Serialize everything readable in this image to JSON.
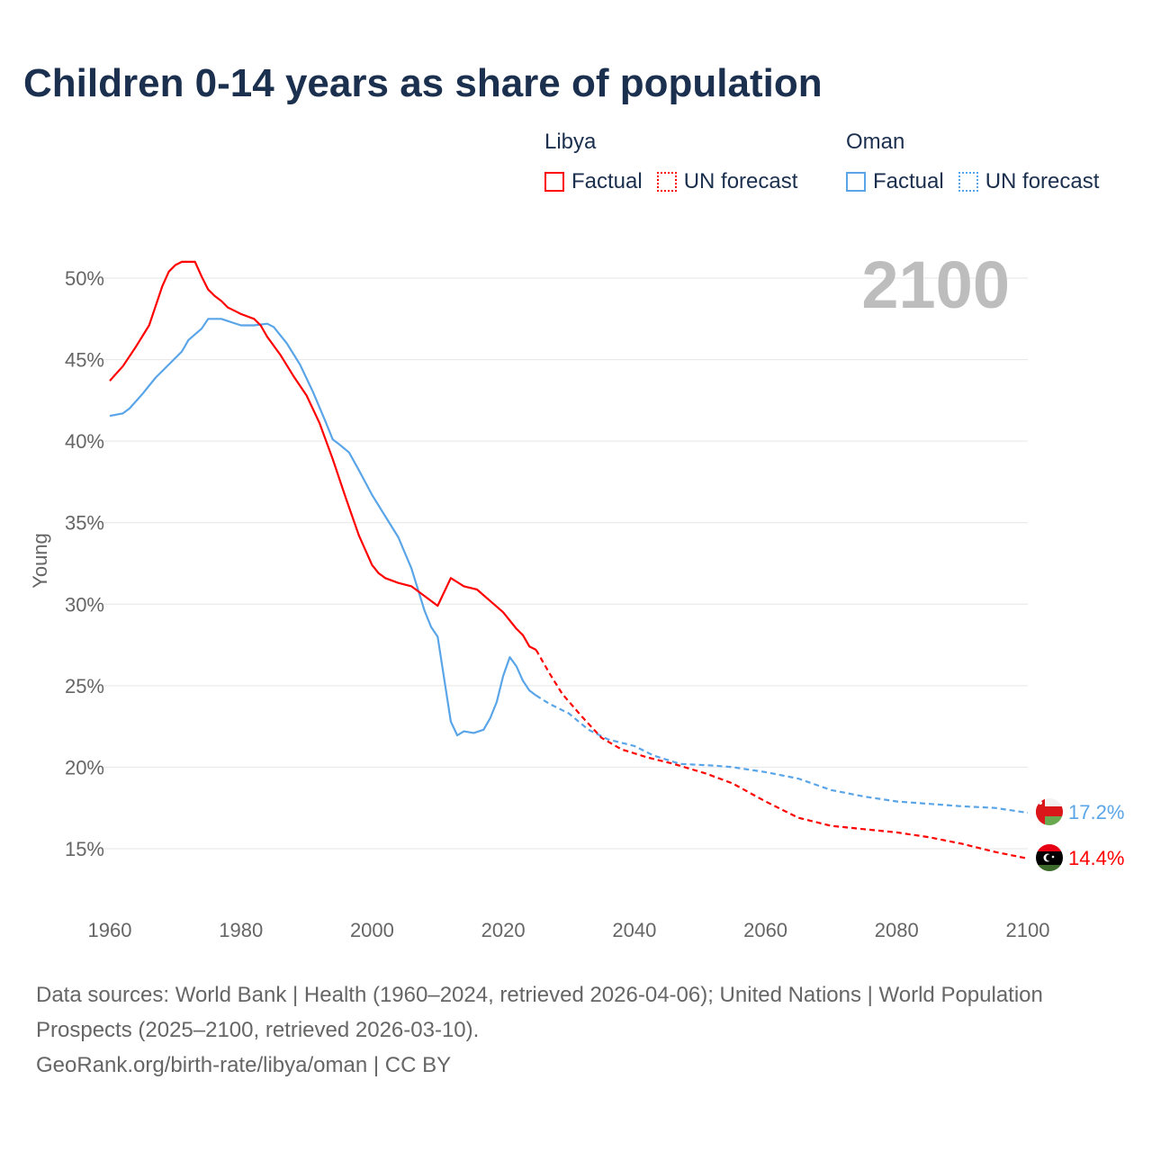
{
  "chart_data": {
    "type": "line",
    "title": "Children 0-14 years as share of population",
    "xlabel": "",
    "ylabel": "Young",
    "xlim": [
      1960,
      2100
    ],
    "ylim": [
      12.5,
      52
    ],
    "x_ticks": [
      "1960",
      "1980",
      "2000",
      "2020",
      "2040",
      "2060",
      "2080",
      "2100"
    ],
    "x_tick_values": [
      1960,
      1980,
      2000,
      2020,
      2040,
      2060,
      2080,
      2100
    ],
    "y_ticks": [
      "15%",
      "20%",
      "25%",
      "30%",
      "35%",
      "40%",
      "45%",
      "50%"
    ],
    "y_tick_values": [
      15,
      20,
      25,
      30,
      35,
      40,
      45,
      50
    ],
    "grid": true,
    "year_label": "2100",
    "legend": {
      "placement": "top-right",
      "groups": [
        {
          "country": "Libya",
          "factual": "Factual",
          "forecast": "UN forecast",
          "color": "#ff0000"
        },
        {
          "country": "Oman",
          "factual": "Factual",
          "forecast": "UN forecast",
          "color": "#5aa5e8"
        }
      ]
    },
    "series": [
      {
        "name": "Libya",
        "color": "#ff0000",
        "end_label": "14.4%",
        "flag": "libya-flag",
        "factual": [
          [
            1960,
            43.7
          ],
          [
            1962,
            44.6
          ],
          [
            1964,
            45.8
          ],
          [
            1966,
            47.1
          ],
          [
            1967,
            48.3
          ],
          [
            1968,
            49.5
          ],
          [
            1969,
            50.4
          ],
          [
            1970,
            50.8
          ],
          [
            1971,
            51.0
          ],
          [
            1973,
            51.0
          ],
          [
            1974,
            50.1
          ],
          [
            1975,
            49.3
          ],
          [
            1976,
            48.9
          ],
          [
            1977,
            48.6
          ],
          [
            1978,
            48.2
          ],
          [
            1979,
            48.0
          ],
          [
            1980,
            47.8
          ],
          [
            1982,
            47.5
          ],
          [
            1983,
            47.1
          ],
          [
            1984,
            46.4
          ],
          [
            1986,
            45.3
          ],
          [
            1988,
            44.0
          ],
          [
            1990,
            42.8
          ],
          [
            1992,
            41.1
          ],
          [
            1994,
            38.9
          ],
          [
            1996,
            36.5
          ],
          [
            1998,
            34.2
          ],
          [
            2000,
            32.4
          ],
          [
            2001,
            31.9
          ],
          [
            2002,
            31.6
          ],
          [
            2004,
            31.3
          ],
          [
            2006,
            31.1
          ],
          [
            2008,
            30.5
          ],
          [
            2010,
            29.9
          ],
          [
            2012,
            31.6
          ],
          [
            2014,
            31.1
          ],
          [
            2016,
            30.9
          ],
          [
            2018,
            30.2
          ],
          [
            2020,
            29.5
          ],
          [
            2022,
            28.5
          ],
          [
            2023,
            28.1
          ],
          [
            2024,
            27.4
          ],
          [
            2025,
            27.2
          ]
        ],
        "forecast": [
          [
            2025,
            27.2
          ],
          [
            2027,
            25.8
          ],
          [
            2029,
            24.5
          ],
          [
            2032,
            23.1
          ],
          [
            2035,
            21.8
          ],
          [
            2038,
            21.1
          ],
          [
            2042,
            20.6
          ],
          [
            2046,
            20.2
          ],
          [
            2051,
            19.6
          ],
          [
            2055,
            19.0
          ],
          [
            2060,
            17.9
          ],
          [
            2065,
            16.9
          ],
          [
            2070,
            16.4
          ],
          [
            2075,
            16.2
          ],
          [
            2080,
            16.0
          ],
          [
            2085,
            15.7
          ],
          [
            2090,
            15.3
          ],
          [
            2095,
            14.8
          ],
          [
            2100,
            14.4
          ]
        ]
      },
      {
        "name": "Oman",
        "color": "#5aa5e8",
        "end_label": "17.2%",
        "flag": "oman-flag",
        "factual": [
          [
            1960,
            41.55
          ],
          [
            1962,
            41.7
          ],
          [
            1963,
            42.0
          ],
          [
            1965,
            42.9
          ],
          [
            1967,
            43.9
          ],
          [
            1969,
            44.7
          ],
          [
            1971,
            45.5
          ],
          [
            1972,
            46.2
          ],
          [
            1974,
            46.9
          ],
          [
            1975,
            47.5
          ],
          [
            1977,
            47.5
          ],
          [
            1980,
            47.1
          ],
          [
            1982,
            47.1
          ],
          [
            1984,
            47.2
          ],
          [
            1985,
            47.0
          ],
          [
            1987,
            46.0
          ],
          [
            1989,
            44.7
          ],
          [
            1991,
            43.0
          ],
          [
            1993,
            41.1
          ],
          [
            1994,
            40.1
          ],
          [
            1995,
            39.8
          ],
          [
            1996.5,
            39.3
          ],
          [
            1998,
            38.2
          ],
          [
            2000,
            36.7
          ],
          [
            2002,
            35.4
          ],
          [
            2004,
            34.1
          ],
          [
            2006,
            32.2
          ],
          [
            2008,
            29.6
          ],
          [
            2009,
            28.6
          ],
          [
            2010,
            28.0
          ],
          [
            2012,
            22.8
          ],
          [
            2013,
            21.95
          ],
          [
            2014,
            22.2
          ],
          [
            2015.5,
            22.1
          ],
          [
            2017,
            22.3
          ],
          [
            2018,
            23.0
          ],
          [
            2019,
            24.0
          ],
          [
            2020,
            25.6
          ],
          [
            2021,
            26.75
          ],
          [
            2022,
            26.2
          ],
          [
            2023,
            25.3
          ],
          [
            2024,
            24.7
          ],
          [
            2025,
            24.4
          ]
        ],
        "forecast": [
          [
            2025,
            24.4
          ],
          [
            2027,
            23.9
          ],
          [
            2030,
            23.3
          ],
          [
            2033,
            22.3
          ],
          [
            2036,
            21.7
          ],
          [
            2040,
            21.3
          ],
          [
            2043,
            20.7
          ],
          [
            2047,
            20.2
          ],
          [
            2052,
            20.1
          ],
          [
            2055,
            20.0
          ],
          [
            2060,
            19.7
          ],
          [
            2065,
            19.3
          ],
          [
            2070,
            18.6
          ],
          [
            2075,
            18.2
          ],
          [
            2080,
            17.9
          ],
          [
            2085,
            17.75
          ],
          [
            2090,
            17.6
          ],
          [
            2095,
            17.5
          ],
          [
            2100,
            17.2
          ]
        ]
      }
    ]
  },
  "footer": {
    "sources": "Data sources: World Bank | Health (1960–2024, retrieved 2026-04-06); United Nations | World Population Prospects (2025–2100, retrieved 2026-03-10).",
    "credit": "GeoRank.org/birth-rate/libya/oman | CC BY"
  }
}
